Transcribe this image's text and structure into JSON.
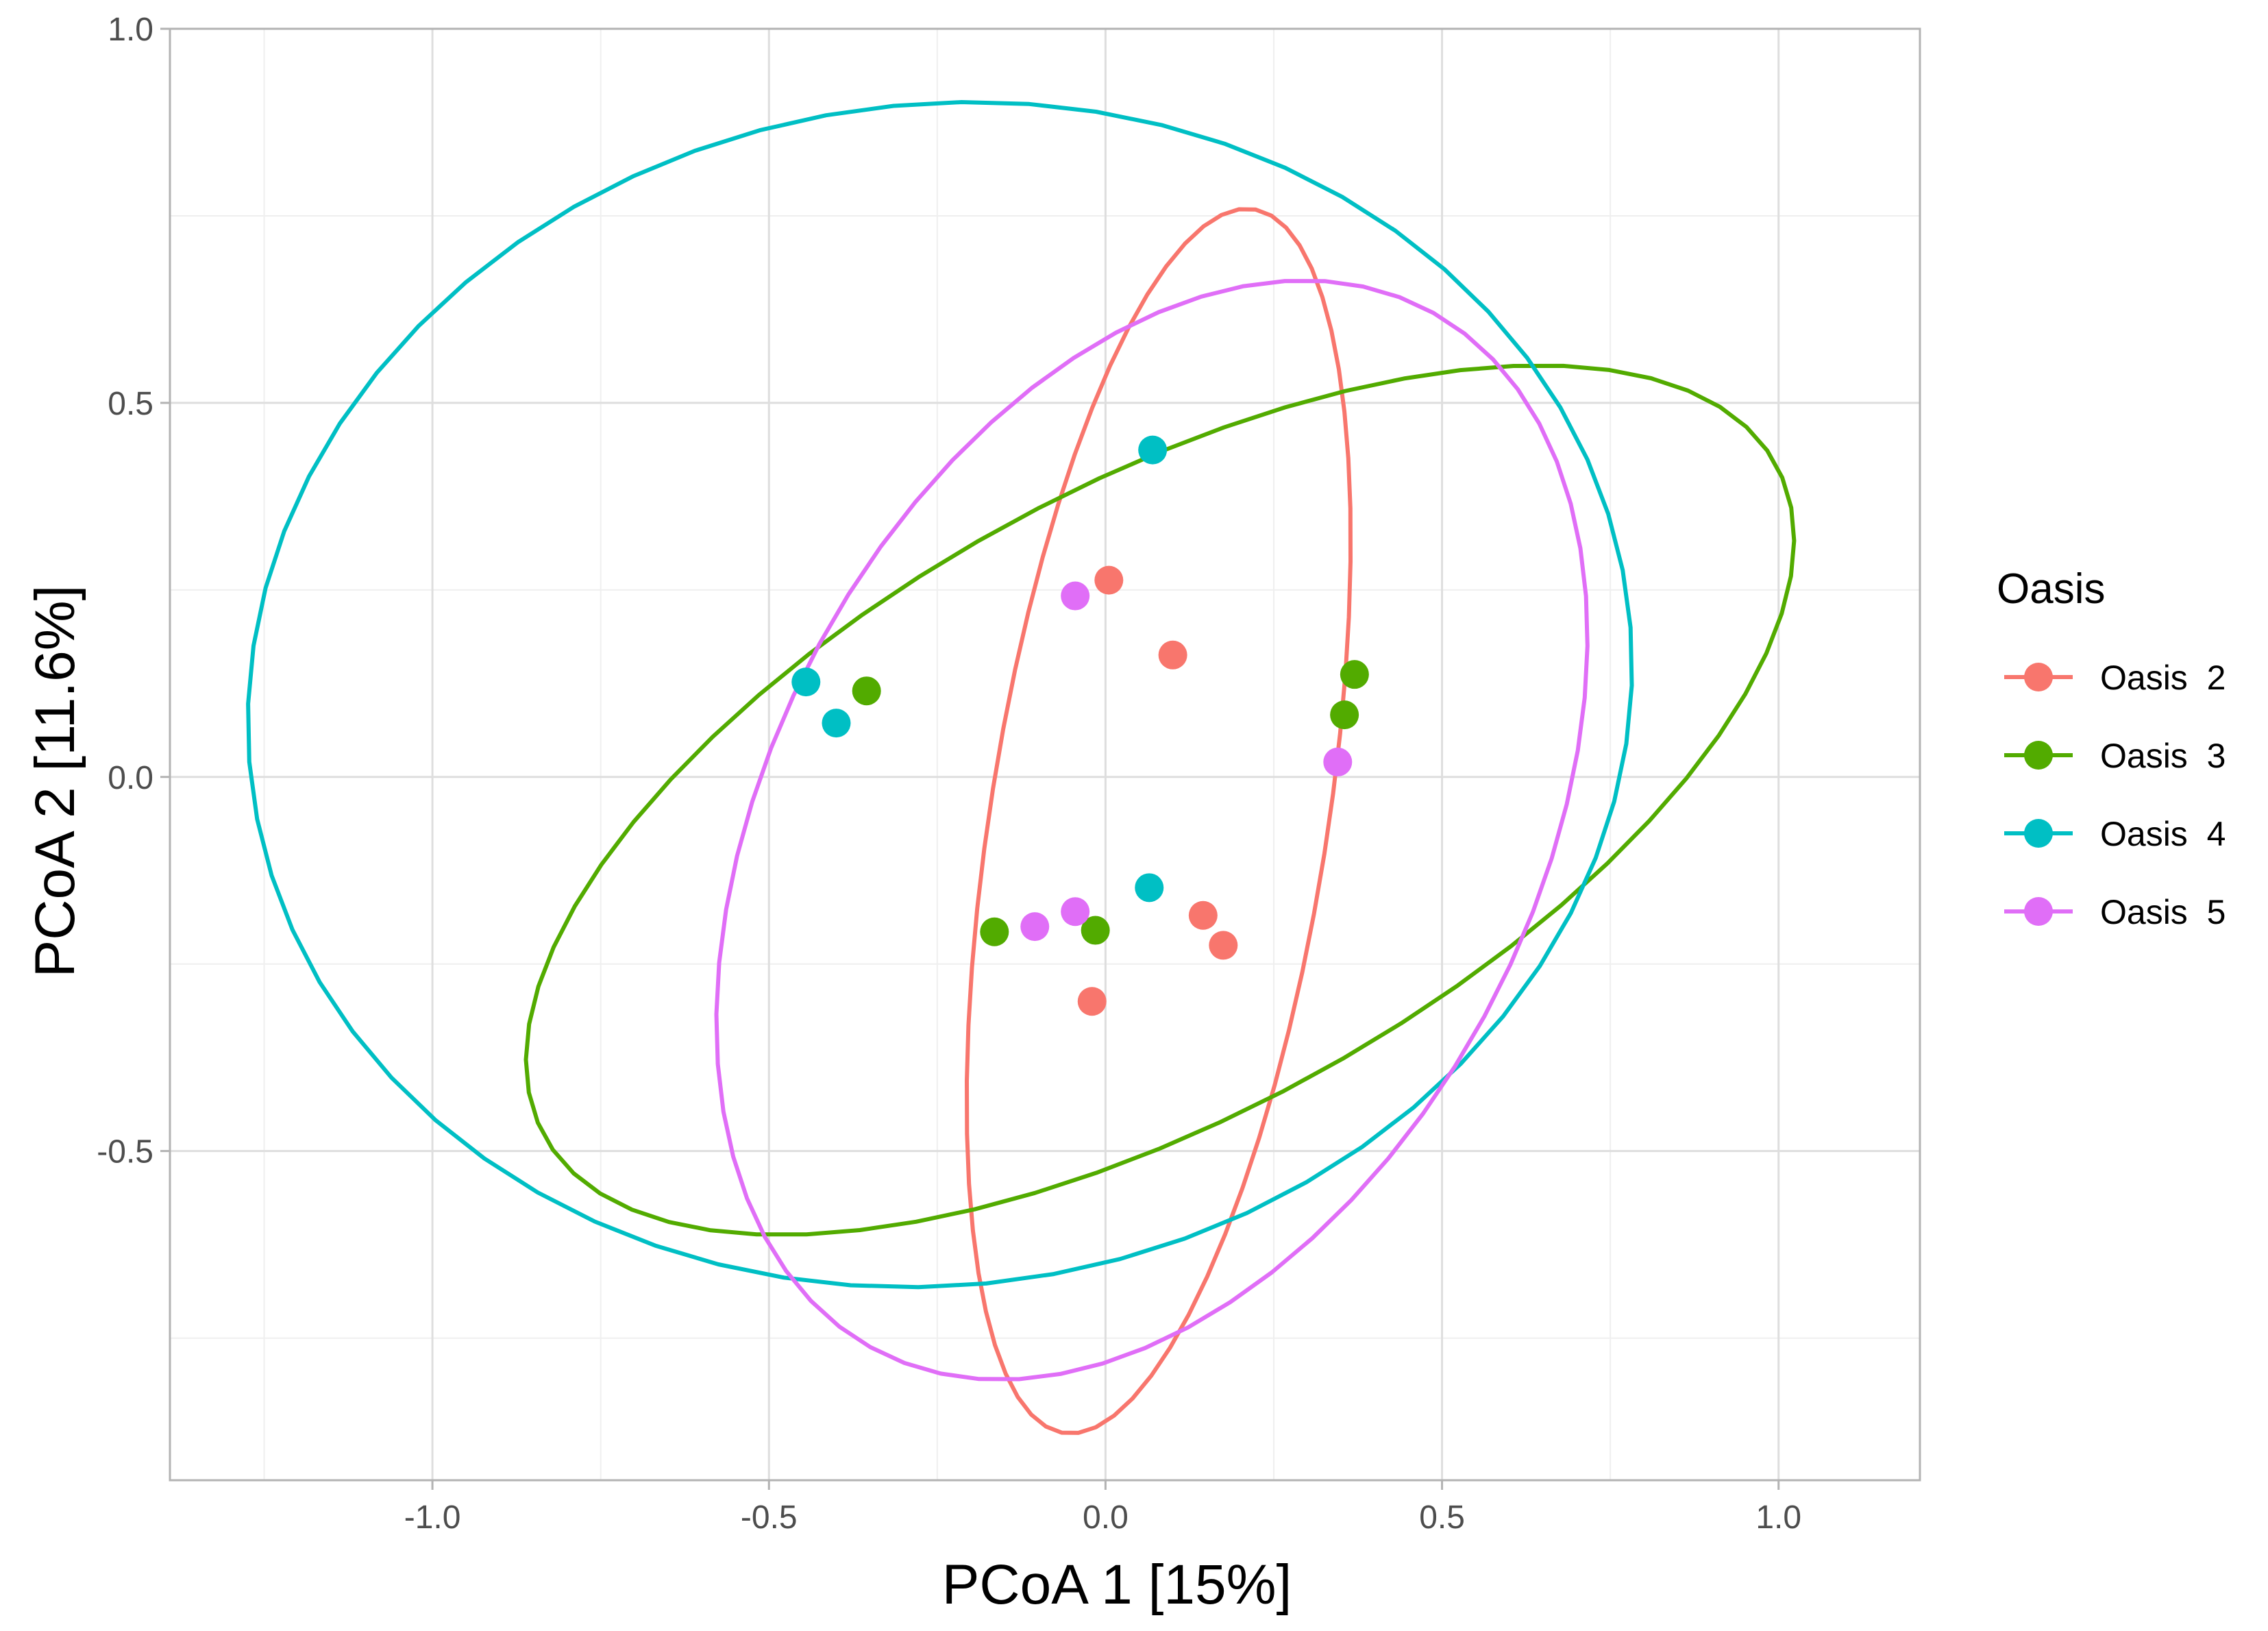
{
  "chart_data": {
    "type": "scatter",
    "title": "",
    "xlabel": "PCoA 1 [15%]",
    "ylabel": "PCoA 2 [11.6%]",
    "xlim": [
      -1.39,
      1.21
    ],
    "ylim": [
      -0.94,
      1.0
    ],
    "x_ticks": [
      -1.0,
      -0.5,
      0.0,
      0.5,
      1.0
    ],
    "x_tick_labels": [
      "-1.0",
      "-0.5",
      "0.0",
      "0.5",
      "1.0"
    ],
    "y_ticks": [
      -0.5,
      0.0,
      0.5,
      1.0
    ],
    "y_tick_labels": [
      "-0.5",
      "0.0",
      "0.5",
      "1.0"
    ],
    "x_minor_ticks": [
      -1.25,
      -0.75,
      -0.25,
      0.25,
      0.75
    ],
    "y_minor_ticks": [
      -0.75,
      -0.25,
      0.25,
      0.75
    ],
    "grid": true,
    "legend": {
      "title": "Oasis",
      "position": "right"
    },
    "series": [
      {
        "name": "Oasis  2",
        "color": "#F8766D",
        "points": [
          {
            "x": 0.005,
            "y": 0.263
          },
          {
            "x": 0.1,
            "y": 0.163
          },
          {
            "x": 0.145,
            "y": -0.185
          },
          {
            "x": 0.175,
            "y": -0.225
          },
          {
            "x": -0.02,
            "y": -0.3
          }
        ],
        "ellipse": {
          "cx": 0.079,
          "cy": -0.059,
          "a": 0.83,
          "b": 0.25,
          "angle_deg": 80.0
        }
      },
      {
        "name": "Oasis  3",
        "color": "#52AB00",
        "points": [
          {
            "x": -0.355,
            "y": 0.115
          },
          {
            "x": -0.165,
            "y": -0.207
          },
          {
            "x": -0.015,
            "y": -0.205
          },
          {
            "x": 0.355,
            "y": 0.083
          },
          {
            "x": 0.37,
            "y": 0.137
          }
        ],
        "ellipse": {
          "cx": 0.081,
          "cy": -0.031,
          "a": 1.02,
          "b": 0.43,
          "angle_deg": 25.0
        }
      },
      {
        "name": "Oasis  4",
        "color": "#00BFC4",
        "points": [
          {
            "x": -0.445,
            "y": 0.127
          },
          {
            "x": -0.4,
            "y": 0.072
          },
          {
            "x": 0.07,
            "y": 0.437
          },
          {
            "x": 0.065,
            "y": -0.148
          }
        ],
        "ellipse": {
          "cx": -0.246,
          "cy": 0.11,
          "a": 1.03,
          "b": 0.79,
          "angle_deg": 5.0
        }
      },
      {
        "name": "Oasis  5",
        "color": "#E06EF7",
        "points": [
          {
            "x": -0.045,
            "y": 0.242
          },
          {
            "x": 0.345,
            "y": 0.02
          },
          {
            "x": -0.105,
            "y": -0.2
          },
          {
            "x": -0.045,
            "y": -0.18
          }
        ],
        "ellipse": {
          "cx": 0.069,
          "cy": -0.071,
          "a": 0.81,
          "b": 0.55,
          "angle_deg": 55.0
        }
      }
    ]
  },
  "colors": {
    "panel_border": "#b3b3b3",
    "grid_major": "#dedede",
    "grid_minor": "#efefef",
    "axis_text": "#4d4d4d"
  }
}
